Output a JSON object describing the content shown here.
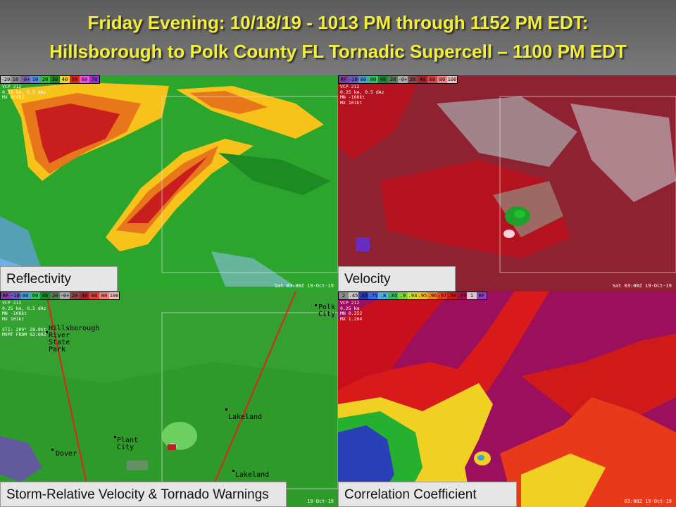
{
  "header": {
    "title_line1": "Friday Evening: 10/18/19 - 1013 PM through 1152 PM EDT:",
    "title_line2": "Hillsborough to Polk County FL Tornadic Supercell – 1100 PM EDT"
  },
  "panels": {
    "reflectivity": {
      "label": "Reflectivity",
      "timestamp": "Sat 03:00Z 19-Oct-19",
      "meta": "VCP 212\n0.25 km, 0.5 dAz\nMX 60dBZ",
      "scale": [
        "-20",
        "10",
        "-0+",
        "10",
        "20",
        "30",
        "40",
        "50",
        "60",
        "70"
      ]
    },
    "velocity": {
      "label": "Velocity",
      "timestamp": "Sat 03:00Z 19-Oct-19",
      "meta": "VCP 212\n0.25 km, 0.5 dAz\nMN -108kt\nMX 101kt",
      "scale": [
        "RF",
        "-100",
        "80",
        "60",
        "40",
        "20",
        "-0+",
        "20",
        "40",
        "60",
        "80",
        "100"
      ]
    },
    "srv": {
      "label": "Storm-Relative  Velocity & Tornado Warnings",
      "timestamp": "19-Oct-19",
      "meta": "VCP 212\n0.25 km, 0.5 dAz\nMN -108kt\nMX 101kt\n\nSTI: 209° 28.0kt\nMVMT FROM 03:00Z",
      "scale": [
        "RF",
        "-100",
        "80",
        "60",
        "40",
        "20",
        "-0+",
        "20",
        "40",
        "60",
        "80",
        "100"
      ],
      "places": {
        "hillsborough": "Hillsborough\nRiver\nState\nPark",
        "polk_city": "Polk\nCity",
        "lakeland": "Lakeland",
        "plant_city": "Plant\nCity",
        "dover": "Dover",
        "lakeland2": "Lakeland"
      }
    },
    "cc": {
      "label": "Correlation Coefficient",
      "timestamp": "03:00Z 19-Oct-19",
      "meta": "VCP 212\n0.25 km\nMN 0.252\nMX 1.264",
      "scale": [
        "2",
        ".45",
        ".65",
        ".75",
        ".8",
        ".85",
        ".9",
        ".93",
        ".95",
        ".96",
        ".97",
        ".98",
        ".99",
        "1",
        "RF"
      ]
    }
  },
  "colors": {
    "title": "#f2ee3a",
    "warning_polygon": "#e0241c"
  }
}
